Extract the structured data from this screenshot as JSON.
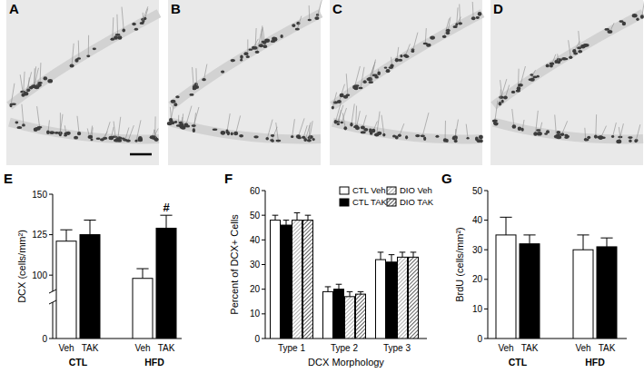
{
  "panels": [
    "A",
    "B",
    "C",
    "D"
  ],
  "chart_data": [
    {
      "type": "bar",
      "panel": "E",
      "y_label": "DCX (cells/mm²)",
      "categories": [
        "CTL",
        "HFD"
      ],
      "series": [
        {
          "name": "Veh",
          "color": "#ffffff",
          "values": [
            121,
            98
          ],
          "errors": [
            7,
            6
          ]
        },
        {
          "name": "TAK",
          "color": "#000000",
          "values": [
            125,
            129
          ],
          "errors": [
            9,
            8
          ]
        }
      ],
      "annotations": [
        {
          "text": "#",
          "category": "HFD",
          "series": "TAK"
        }
      ],
      "ylim": [
        0,
        150
      ],
      "axis_break": [
        5,
        90
      ],
      "yticks": [
        0,
        100,
        125,
        150
      ],
      "grid": false
    },
    {
      "type": "bar",
      "panel": "F",
      "y_label": "Percent of DCX+ Cells",
      "x_label": "DCX Morphology",
      "categories": [
        "Type 1",
        "Type 2",
        "Type 3"
      ],
      "series": [
        {
          "name": "CTL Veh",
          "color": "#ffffff",
          "values": [
            48,
            19,
            32
          ],
          "errors": [
            2,
            2,
            3
          ]
        },
        {
          "name": "CTL TAK",
          "color": "#000000",
          "values": [
            46,
            20,
            31
          ],
          "errors": [
            2,
            2,
            3
          ]
        },
        {
          "name": "DIO Veh",
          "color": "#9a9a9a",
          "marker": "hatch",
          "values": [
            48,
            17,
            33
          ],
          "errors": [
            3,
            2,
            2
          ]
        },
        {
          "name": "DIO TAK",
          "color": "#3a3a3a",
          "marker": "hatch",
          "values": [
            48,
            18,
            33
          ],
          "errors": [
            2,
            1,
            2
          ]
        }
      ],
      "legend": "upper right",
      "ylim": [
        0,
        60
      ],
      "yticks": [
        0,
        10,
        20,
        30,
        40,
        50,
        60
      ],
      "grid": false
    },
    {
      "type": "bar",
      "panel": "G",
      "y_label": "BrdU (cells/mm²)",
      "categories": [
        "CTL",
        "HFD"
      ],
      "series": [
        {
          "name": "Veh",
          "color": "#ffffff",
          "values": [
            35,
            30
          ],
          "errors": [
            6,
            5
          ]
        },
        {
          "name": "TAK",
          "color": "#000000",
          "values": [
            32,
            31
          ],
          "errors": [
            3,
            3
          ]
        }
      ],
      "ylim": [
        0,
        50
      ],
      "yticks": [
        0,
        10,
        20,
        30,
        40,
        50
      ],
      "grid": false
    }
  ]
}
